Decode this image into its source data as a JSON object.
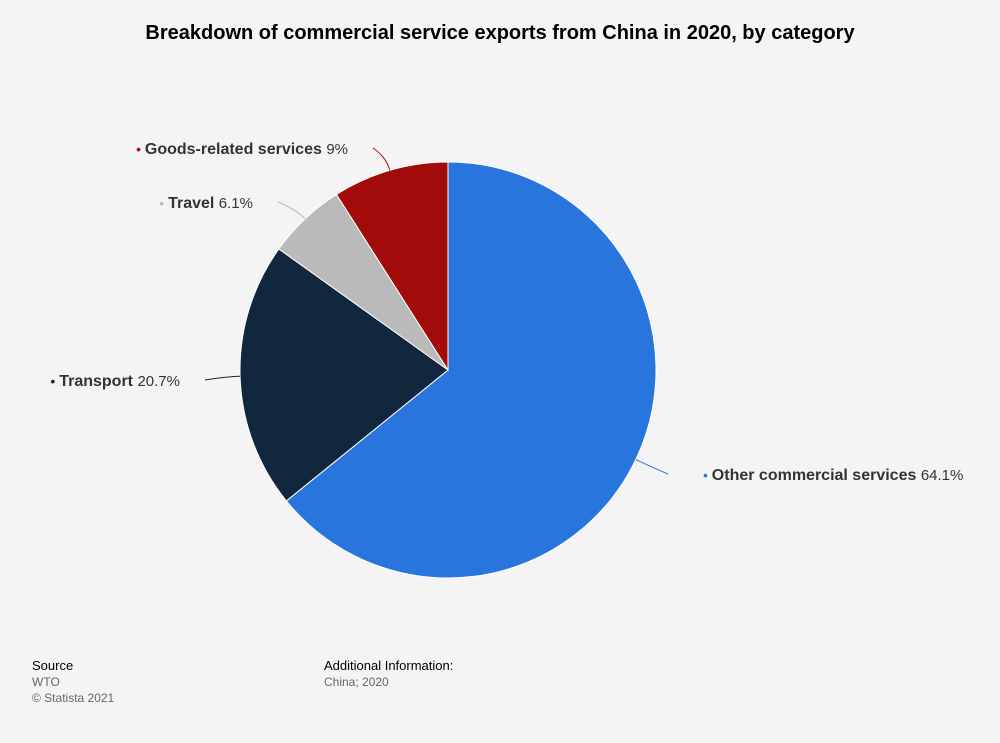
{
  "chart_data": {
    "type": "pie",
    "title": "Breakdown of commercial service exports from China in 2020, by category",
    "slices": [
      {
        "label": "Other commercial services",
        "value": 64.1,
        "value_text": "64.1%",
        "color": "#2876dd"
      },
      {
        "label": "Transport",
        "value": 20.7,
        "value_text": "20.7%",
        "color": "#10273d"
      },
      {
        "label": "Travel",
        "value": 6.1,
        "value_text": "6.1%",
        "color": "#bababa"
      },
      {
        "label": "Goods-related services",
        "value": 9.0,
        "value_text": "9%",
        "color": "#a30b0b"
      }
    ]
  },
  "footer": {
    "source_heading": "Source",
    "source_name": "WTO",
    "copyright": "© Statista 2021",
    "additional_heading": "Additional Information:",
    "additional_text": "China; 2020"
  }
}
